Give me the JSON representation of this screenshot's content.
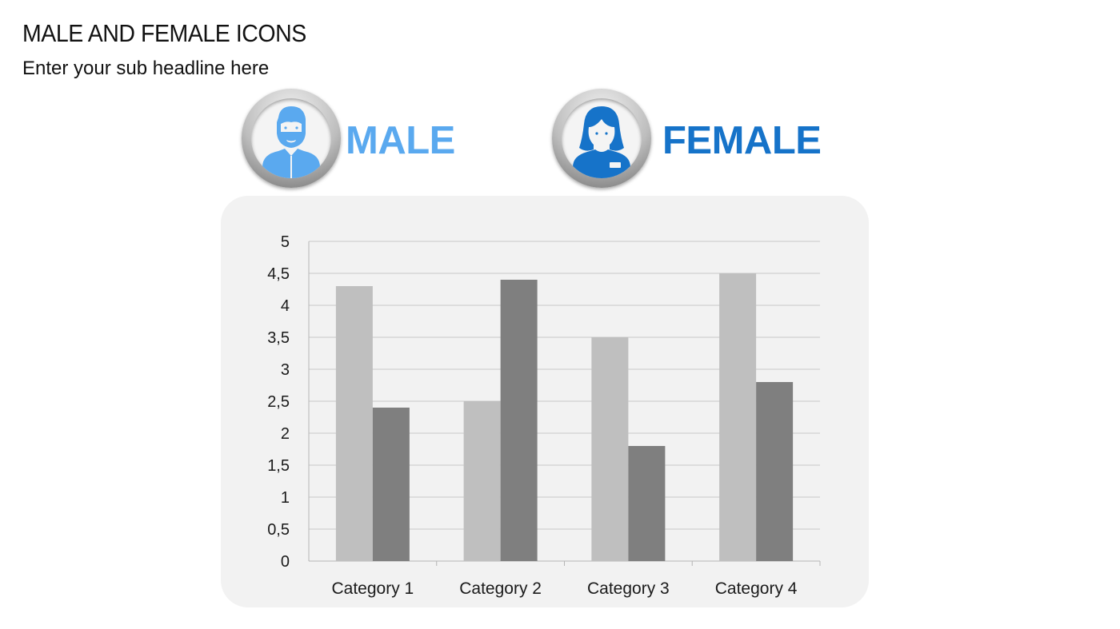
{
  "slide": {
    "title": "MALE AND FEMALE ICONS",
    "subtitle": "Enter your sub headline here"
  },
  "legend": {
    "male": {
      "label": "MALE",
      "icon": "male-person-icon",
      "color": "#5aa9ef"
    },
    "female": {
      "label": "FEMALE",
      "icon": "female-person-icon",
      "color": "#1673c9"
    }
  },
  "chart_data": {
    "type": "bar",
    "categories": [
      "Category 1",
      "Category 2",
      "Category 3",
      "Category 4"
    ],
    "series": [
      {
        "values": [
          4.3,
          2.5,
          3.5,
          4.5
        ],
        "color": "#bfbfbf"
      },
      {
        "values": [
          2.4,
          4.4,
          1.8,
          2.8
        ],
        "color": "#7f7f7f"
      }
    ],
    "ylim": [
      0,
      5
    ],
    "yticks": [
      "0",
      "0,5",
      "1",
      "1,5",
      "2",
      "2,5",
      "3",
      "3,5",
      "4",
      "4,5",
      "5"
    ],
    "grid": true
  }
}
